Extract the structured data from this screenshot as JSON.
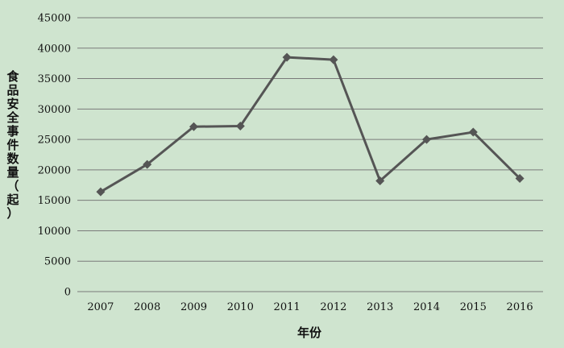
{
  "chart_data": {
    "type": "line",
    "title": "",
    "xlabel": "年份",
    "ylabel_chars": [
      "食",
      "品",
      "安",
      "全",
      "事",
      "件",
      "数",
      "量",
      "（",
      "起",
      "）"
    ],
    "categories": [
      "2007",
      "2008",
      "2009",
      "2010",
      "2011",
      "2012",
      "2013",
      "2014",
      "2015",
      "2016"
    ],
    "series": [
      {
        "values": [
          16400,
          20900,
          27100,
          27200,
          38500,
          38100,
          18200,
          25000,
          26200,
          18600
        ]
      }
    ],
    "ylim": [
      0,
      45000
    ],
    "yticks": [
      "0",
      "5000",
      "10000",
      "15000",
      "20000",
      "25000",
      "30000",
      "35000",
      "40000",
      "45000"
    ],
    "grid": true,
    "legend": "none",
    "colors": {
      "background": "#cfe4cf",
      "line": "#555555",
      "grid": "#7a7a7a"
    }
  }
}
